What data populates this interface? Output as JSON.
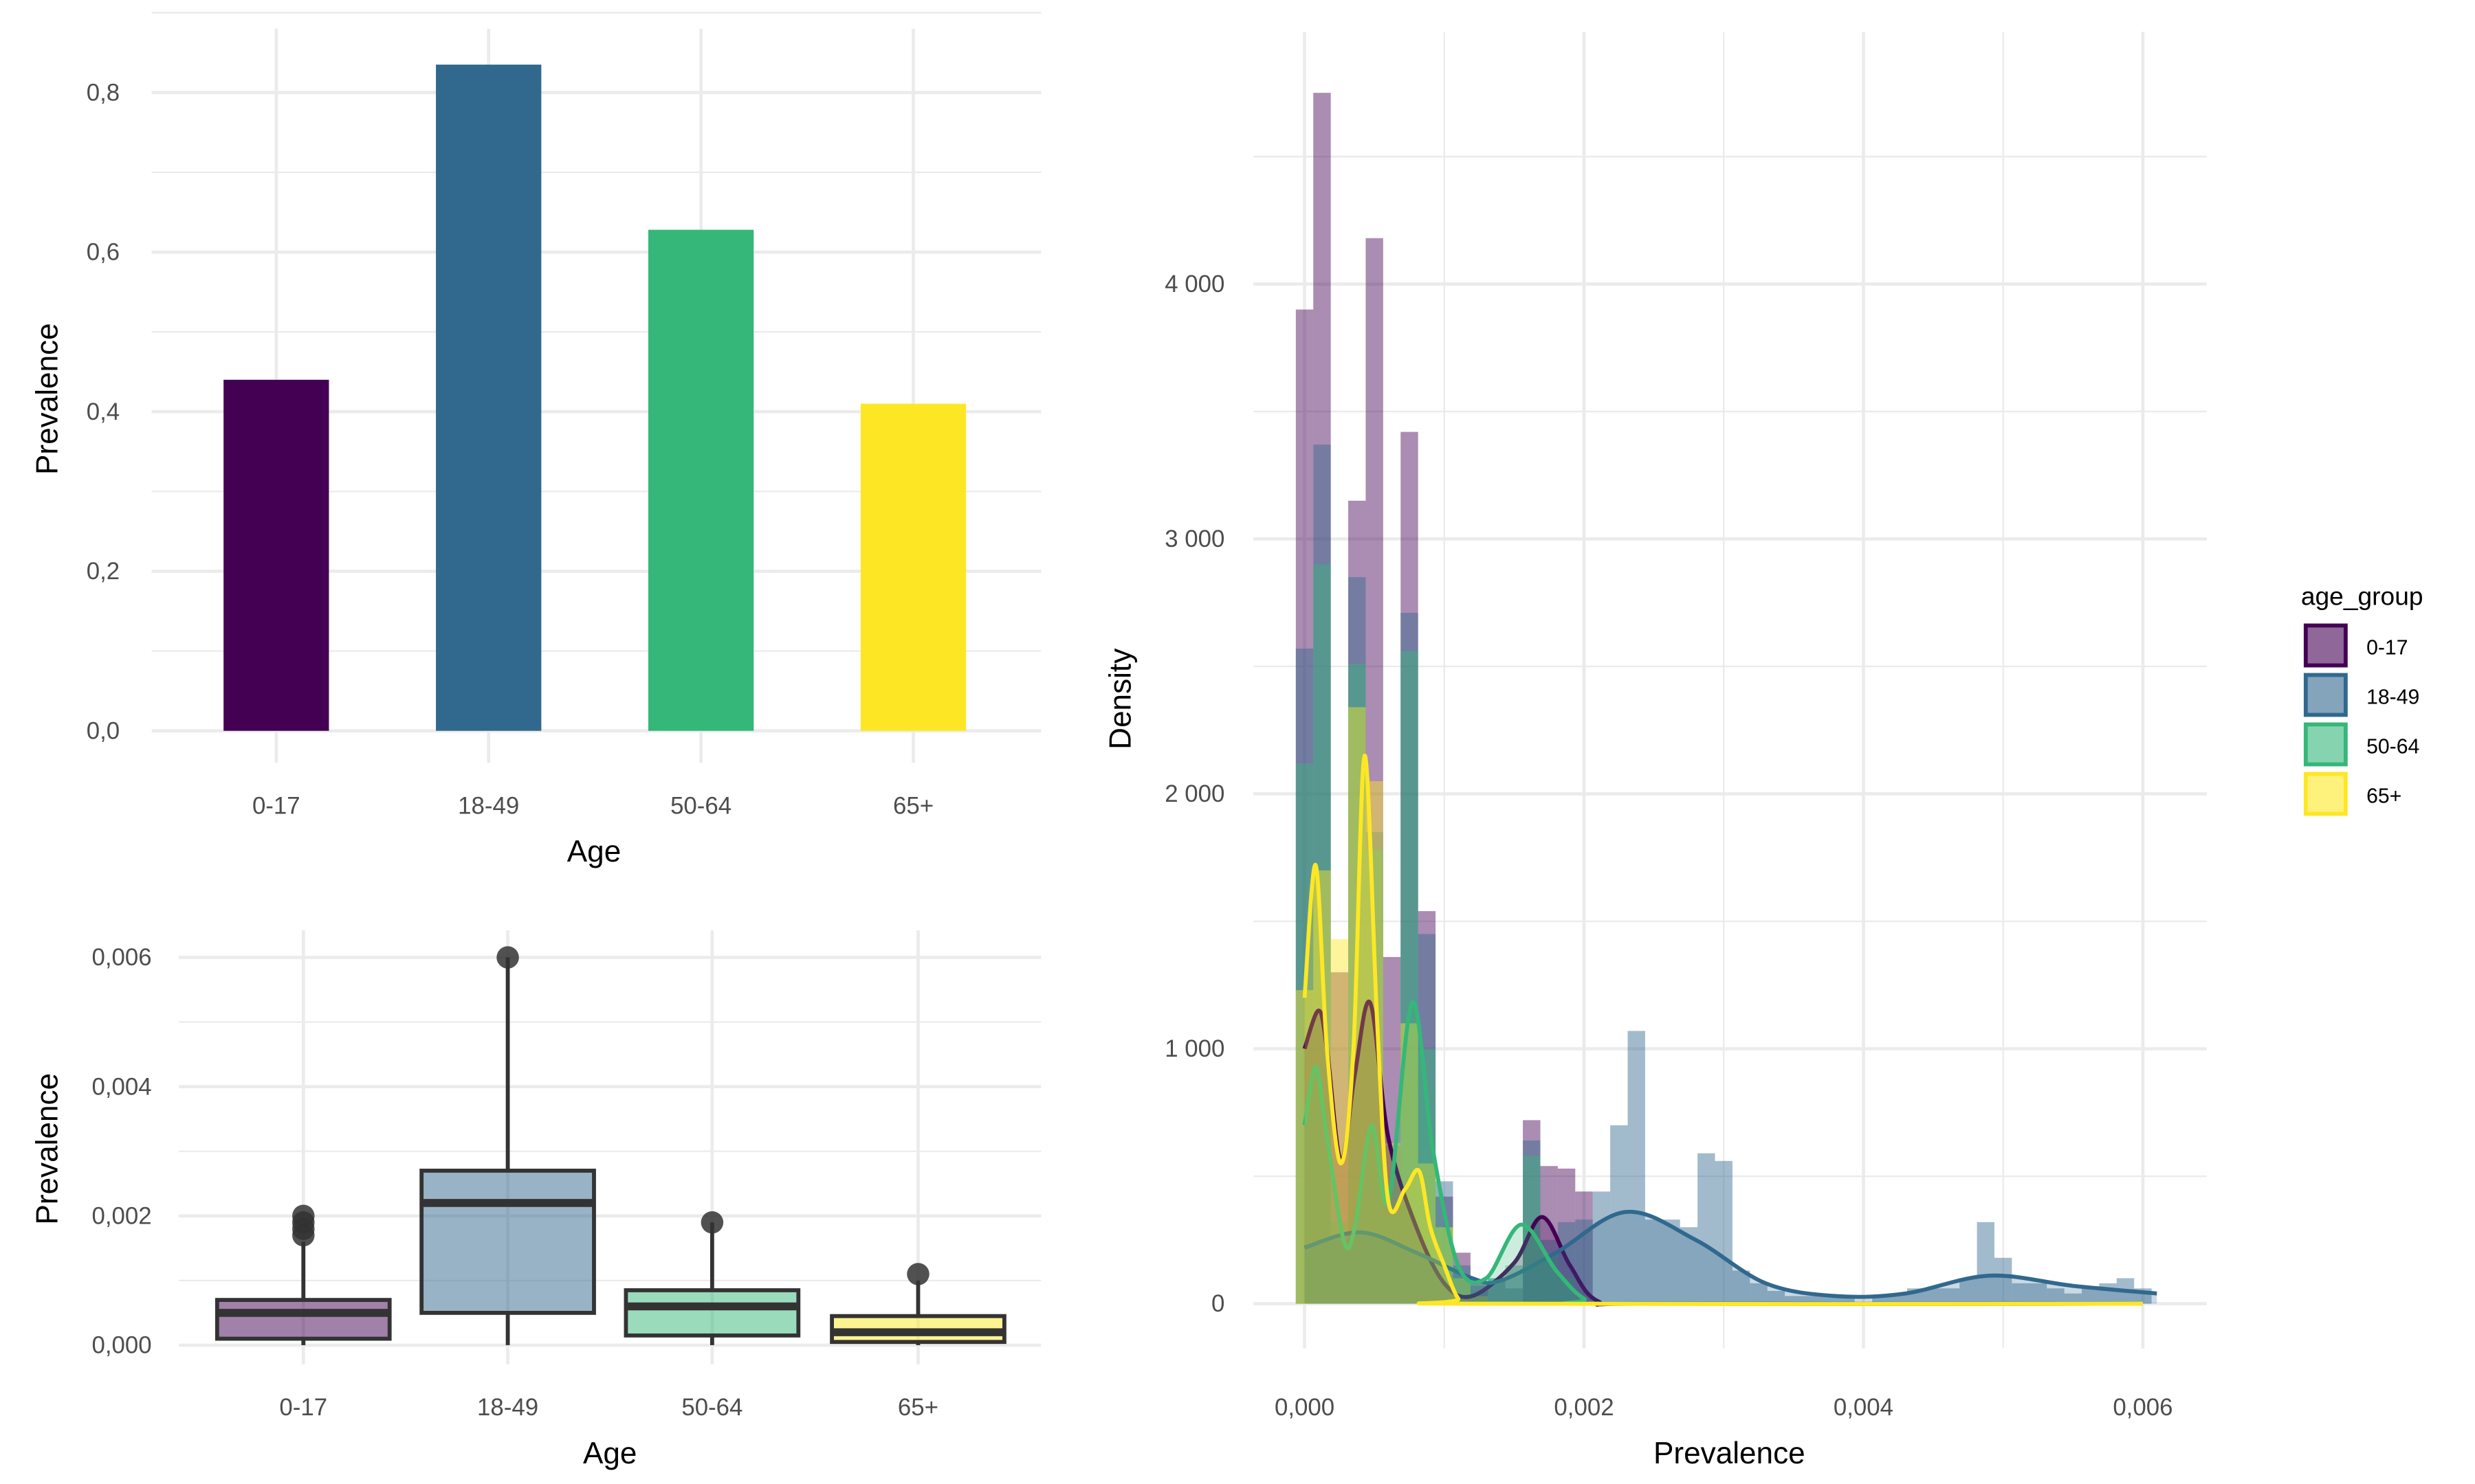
{
  "chart_data": [
    {
      "type": "bar",
      "title": "",
      "xlabel": "Age",
      "ylabel": "Prevalence",
      "categories": [
        "0-17",
        "18-49",
        "50-64",
        "65+"
      ],
      "values": [
        0.44,
        0.835,
        0.628,
        0.41
      ],
      "ylim": [
        0,
        0.8
      ],
      "yticks": [
        0,
        0.2,
        0.4,
        0.6,
        0.8
      ],
      "ytick_labels": [
        "0,0",
        "0,2",
        "0,4",
        "0,6",
        "0,8"
      ],
      "colors": [
        "#440154",
        "#31688e",
        "#35b779",
        "#fde725"
      ],
      "grid": true
    },
    {
      "type": "boxplot",
      "xlabel": "Age",
      "ylabel": "Prevalence",
      "categories": [
        "0-17",
        "18-49",
        "50-64",
        "65+"
      ],
      "boxes": [
        {
          "lower": 0,
          "q1": 0.0001,
          "median": 0.0005,
          "q3": 0.0007,
          "upper": 0.0016,
          "outliers": [
            0.0017,
            0.0018,
            0.0019,
            0.002
          ]
        },
        {
          "lower": 0,
          "q1": 0.0005,
          "median": 0.0022,
          "q3": 0.0027,
          "upper": 0.006,
          "outliers": [
            0.006
          ]
        },
        {
          "lower": 0,
          "q1": 0.00015,
          "median": 0.0006,
          "q3": 0.00085,
          "upper": 0.0019,
          "outliers": [
            0.0019
          ]
        },
        {
          "lower": 0,
          "q1": 5e-05,
          "median": 0.0002,
          "q3": 0.00045,
          "upper": 0.001,
          "outliers": [
            0.0011
          ]
        }
      ],
      "yticks": [
        0,
        0.002,
        0.004,
        0.006
      ],
      "ytick_labels": [
        "0,000",
        "0,002",
        "0,004",
        "0,006"
      ],
      "colors": [
        "#440154",
        "#31688e",
        "#35b779",
        "#fde725"
      ]
    },
    {
      "type": "histogram+density",
      "xlabel": "Prevalence",
      "ylabel": "Density",
      "legend_title": "age_group",
      "legend_position": "right",
      "xlim": [
        0,
        0.006
      ],
      "ylim": [
        0,
        4750
      ],
      "xticks": [
        0,
        0.002,
        0.004,
        0.006
      ],
      "xtick_labels": [
        "0,000",
        "0,002",
        "0,004",
        "0,006"
      ],
      "yticks": [
        0,
        1000,
        2000,
        3000,
        4000
      ],
      "ytick_labels": [
        "0",
        "1 000",
        "2 000",
        "3 000",
        "4 000"
      ],
      "binwidth": 0.000125,
      "series": [
        {
          "name": "0-17",
          "color": "#440154",
          "hist": [
            3900,
            4750,
            1300,
            3150,
            4180,
            1360,
            3420,
            1540,
            420,
            200,
            80,
            0,
            0,
            720,
            540,
            530,
            440,
            0
          ],
          "density": [
            [
              0,
              1000
            ],
            [
              0.0001,
              1150
            ],
            [
              0.00016,
              1000
            ],
            [
              0.00026,
              560
            ],
            [
              0.00036,
              900
            ],
            [
              0.00047,
              1180
            ],
            [
              0.0006,
              650
            ],
            [
              0.0008,
              300
            ],
            [
              0.001,
              80
            ],
            [
              0.0012,
              30
            ],
            [
              0.0015,
              160
            ],
            [
              0.0017,
              340
            ],
            [
              0.0019,
              150
            ],
            [
              0.0021,
              10
            ],
            [
              0.0025,
              0
            ],
            [
              0.006,
              0
            ]
          ]
        },
        {
          "name": "18-49",
          "color": "#31688e",
          "hist": [
            2570,
            3370,
            250,
            2850,
            1850,
            620,
            2710,
            1450,
            480,
            150,
            70,
            100,
            60,
            640,
            250,
            320,
            330,
            440,
            700,
            1070,
            330,
            330,
            300,
            590,
            560,
            130,
            80,
            50,
            30,
            30,
            30,
            30,
            0,
            30,
            40,
            60,
            60,
            60,
            100,
            320,
            180,
            80,
            80,
            60,
            40,
            60,
            80,
            100,
            60
          ],
          "density": [
            [
              0,
              220
            ],
            [
              0.0004,
              280
            ],
            [
              0.0008,
              200
            ],
            [
              0.0012,
              100
            ],
            [
              0.0014,
              90
            ],
            [
              0.0018,
              200
            ],
            [
              0.0023,
              360
            ],
            [
              0.0028,
              250
            ],
            [
              0.0033,
              80
            ],
            [
              0.0038,
              30
            ],
            [
              0.0043,
              40
            ],
            [
              0.0049,
              110
            ],
            [
              0.0055,
              70
            ],
            [
              0.0061,
              40
            ]
          ]
        },
        {
          "name": "50-64",
          "color": "#35b779",
          "hist": [
            2120,
            2900,
            320,
            2510,
            1780,
            350,
            2560,
            1000,
            300,
            100,
            30,
            100,
            150,
            580,
            200,
            100
          ],
          "density": [
            [
              0,
              700
            ],
            [
              8e-05,
              930
            ],
            [
              0.00015,
              700
            ],
            [
              0.00028,
              250
            ],
            [
              0.00036,
              300
            ],
            [
              0.00048,
              700
            ],
            [
              0.0006,
              400
            ],
            [
              0.00077,
              1180
            ],
            [
              0.00092,
              600
            ],
            [
              0.0011,
              150
            ],
            [
              0.0013,
              100
            ],
            [
              0.00155,
              310
            ],
            [
              0.0018,
              130
            ],
            [
              0.002,
              20
            ],
            [
              0.0022,
              0
            ],
            [
              0.006,
              0
            ]
          ]
        },
        {
          "name": "65+",
          "color": "#fde725",
          "hist": [
            1230,
            1700,
            1430,
            2340,
            2050,
            630,
            1100,
            550,
            300,
            100,
            30
          ],
          "density": [
            [
              0,
              1200
            ],
            [
              8e-05,
              1720
            ],
            [
              0.00016,
              1000
            ],
            [
              0.00026,
              550
            ],
            [
              0.00035,
              1000
            ],
            [
              0.00043,
              2150
            ],
            [
              0.00052,
              1100
            ],
            [
              0.0006,
              400
            ],
            [
              0.00072,
              450
            ],
            [
              0.00082,
              520
            ],
            [
              0.0009,
              300
            ],
            [
              0.001,
              150
            ],
            [
              0.0011,
              20
            ],
            [
              0.0012,
              0
            ],
            [
              0.006,
              0
            ]
          ]
        }
      ]
    }
  ]
}
